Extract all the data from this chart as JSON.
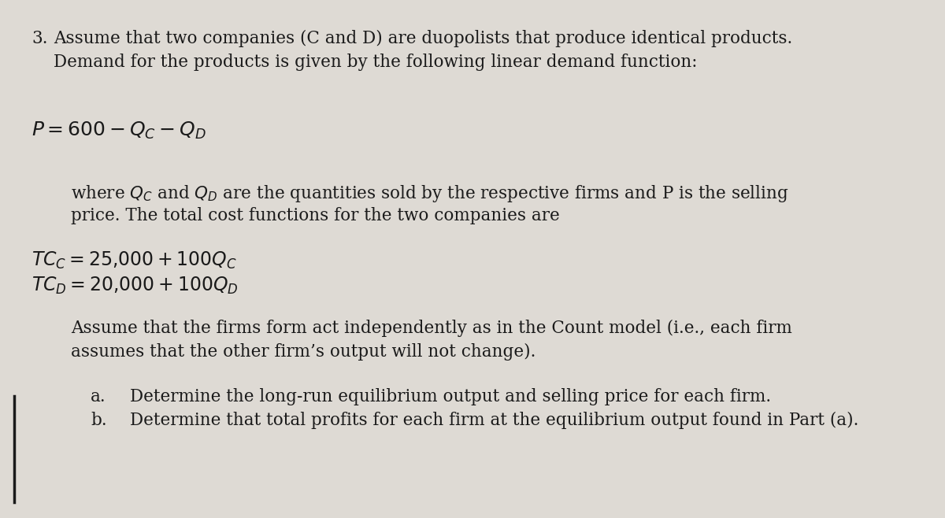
{
  "background_color": "#dedad4",
  "text_color": "#1a1a1a",
  "fig_width": 12.0,
  "fig_height": 6.58,
  "line1_num": "3.",
  "line1_text": "  Assume that two companies (C and D) are duopolists that produce identical products.",
  "line2_text": "Demand for the products is given by the following linear demand function:",
  "assume_line1": "Assume that the firms form act independently as in the Count model (i.e., each firm",
  "assume_line2": "assumes that the other firm’s output will not change).",
  "part_a_label": "a.",
  "part_a_text": "Determine the long-run equilibrium output and selling price for each firm.",
  "part_b_label": "b.",
  "part_b_text": "Determine that total profits for each firm at the equilibrium output found in Part (a).",
  "where_line1_pre": "where Q",
  "where_line1_mid": " and Q",
  "where_line1_post": " are the quantities sold by the respective firms and P is the selling",
  "where_line2": "price. The total cost functions for the two companies are"
}
